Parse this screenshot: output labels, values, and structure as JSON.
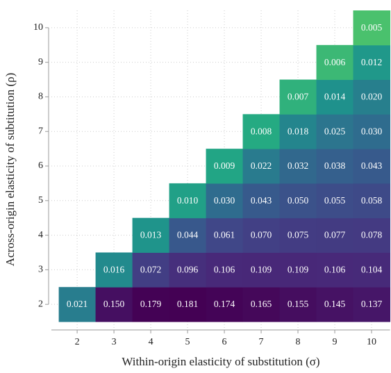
{
  "chart_data": {
    "type": "heatmap",
    "x_label": "Within-origin elasticity of substitution (σ)",
    "y_label": "Across-origin elasticity of subtitution (ρ)",
    "x": [
      2,
      3,
      4,
      5,
      6,
      7,
      8,
      9,
      10
    ],
    "y": [
      2,
      3,
      4,
      5,
      6,
      7,
      8,
      9,
      10
    ],
    "xlim": [
      1.3,
      10.5
    ],
    "ylim": [
      1.3,
      10.5
    ],
    "xticks": [
      2,
      3,
      4,
      5,
      6,
      7,
      8,
      9,
      10
    ],
    "yticks": [
      2,
      3,
      4,
      5,
      6,
      7,
      8,
      9,
      10
    ],
    "grid": true,
    "color_scale": "log",
    "colors": [
      "#4ac16d",
      "#22a884",
      "#1f918c",
      "#2a788e",
      "#355f8d",
      "#414487",
      "#482878",
      "#440154"
    ],
    "values": [
      [
        0.021,
        0.15,
        0.179,
        0.181,
        0.174,
        0.165,
        0.155,
        0.145,
        0.137
      ],
      [
        null,
        0.016,
        0.072,
        0.096,
        0.106,
        0.109,
        0.109,
        0.106,
        0.104
      ],
      [
        null,
        null,
        0.013,
        0.044,
        0.061,
        0.07,
        0.075,
        0.077,
        0.078
      ],
      [
        null,
        null,
        null,
        0.01,
        0.03,
        0.043,
        0.05,
        0.055,
        0.058
      ],
      [
        null,
        null,
        null,
        null,
        0.009,
        0.022,
        0.032,
        0.038,
        0.043
      ],
      [
        null,
        null,
        null,
        null,
        null,
        0.008,
        0.018,
        0.025,
        0.03
      ],
      [
        null,
        null,
        null,
        null,
        null,
        null,
        0.007,
        0.014,
        0.02
      ],
      [
        null,
        null,
        null,
        null,
        null,
        null,
        null,
        0.006,
        0.012
      ],
      [
        null,
        null,
        null,
        null,
        null,
        null,
        null,
        null,
        0.005
      ]
    ],
    "value_labels": [
      [
        "0.021",
        "0.150",
        "0.179",
        "0.181",
        "0.174",
        "0.165",
        "0.155",
        "0.145",
        "0.137"
      ],
      [
        null,
        "0.016",
        "0.072",
        "0.096",
        "0.106",
        "0.109",
        "0.109",
        "0.106",
        "0.104"
      ],
      [
        null,
        null,
        "0.013",
        "0.044",
        "0.061",
        "0.070",
        "0.075",
        "0.077",
        "0.078"
      ],
      [
        null,
        null,
        null,
        "0.010",
        "0.030",
        "0.043",
        "0.050",
        "0.055",
        "0.058"
      ],
      [
        null,
        null,
        null,
        null,
        "0.009",
        "0.022",
        "0.032",
        "0.038",
        "0.043"
      ],
      [
        null,
        null,
        null,
        null,
        null,
        "0.008",
        "0.018",
        "0.025",
        "0.030"
      ],
      [
        null,
        null,
        null,
        null,
        null,
        null,
        "0.007",
        "0.014",
        "0.020"
      ],
      [
        null,
        null,
        null,
        null,
        null,
        null,
        null,
        "0.006",
        "0.012"
      ],
      [
        null,
        null,
        null,
        null,
        null,
        null,
        null,
        null,
        "0.005"
      ]
    ]
  }
}
